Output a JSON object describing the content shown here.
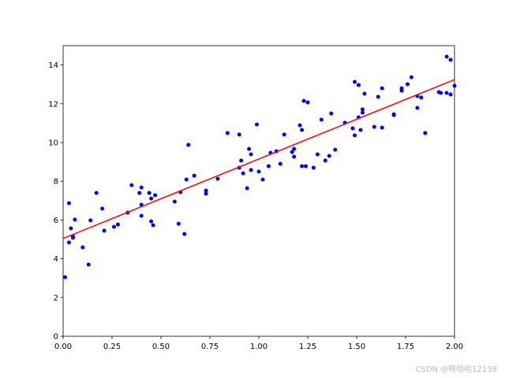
{
  "chart_data": {
    "type": "scatter",
    "xlim": [
      0,
      2
    ],
    "ylim": [
      0,
      15
    ],
    "xticks": [
      {
        "value": 0,
        "label": "0.00"
      },
      0.25,
      {
        "value": 0.5,
        "label": "0.50"
      },
      0.75,
      {
        "value": 1,
        "label": "1.00"
      },
      1.25,
      {
        "value": 1.5,
        "label": "1.50"
      },
      1.75,
      {
        "value": 2,
        "label": "2.00"
      }
    ],
    "yticks": [
      0,
      2,
      4,
      6,
      8,
      10,
      12,
      14
    ],
    "series": [
      {
        "type": "scatter",
        "color": "#0000ff",
        "x": [
          0.01,
          0.03,
          0.03,
          0.04,
          0.05,
          0.05,
          0.06,
          0.1,
          0.13,
          0.14,
          0.17,
          0.2,
          0.21,
          0.26,
          0.28,
          0.33,
          0.35,
          0.39,
          0.4,
          0.4,
          0.4,
          0.44,
          0.45,
          0.45,
          0.46,
          0.47,
          0.57,
          0.59,
          0.6,
          0.62,
          0.63,
          0.64,
          0.67,
          0.73,
          0.73,
          0.79,
          0.84,
          0.9,
          0.9,
          0.91,
          0.92,
          0.94,
          0.95,
          0.96,
          0.96,
          0.99,
          1.0,
          1.02,
          1.05,
          1.06,
          1.09,
          1.11,
          1.13,
          1.17,
          1.18,
          1.18,
          1.21,
          1.22,
          1.22,
          1.23,
          1.24,
          1.25,
          1.28,
          1.3,
          1.32,
          1.34,
          1.36,
          1.37,
          1.39,
          1.44,
          1.48,
          1.49,
          1.49,
          1.51,
          1.51,
          1.53,
          1.53,
          1.52,
          1.54,
          1.59,
          1.61,
          1.63,
          1.63,
          1.69,
          1.69,
          1.73,
          1.73,
          1.76,
          1.78,
          1.81,
          1.81,
          1.83,
          1.85,
          1.92,
          1.93,
          1.96,
          1.96,
          1.98,
          1.98,
          2.0
        ],
        "values": [
          3.05,
          6.87,
          4.84,
          5.57,
          5.16,
          5.08,
          6.02,
          4.59,
          3.7,
          5.98,
          7.4,
          6.59,
          5.45,
          5.65,
          5.77,
          6.38,
          7.8,
          7.4,
          6.79,
          6.22,
          7.68,
          7.4,
          7.11,
          5.93,
          5.73,
          7.28,
          6.95,
          5.81,
          7.44,
          5.28,
          8.09,
          9.88,
          8.29,
          7.52,
          7.36,
          8.13,
          10.49,
          8.7,
          10.41,
          9.07,
          8.41,
          7.64,
          9.67,
          8.58,
          9.39,
          10.93,
          8.5,
          8.09,
          8.78,
          9.47,
          9.55,
          8.9,
          10.41,
          9.51,
          9.67,
          9.27,
          10.89,
          10.65,
          8.78,
          12.15,
          8.78,
          12.07,
          8.7,
          9.39,
          11.18,
          9.07,
          9.31,
          11.5,
          9.63,
          11.02,
          10.73,
          13.13,
          10.37,
          12.97,
          11.3,
          11.71,
          11.54,
          10.65,
          12.52,
          10.81,
          12.36,
          12.8,
          10.77,
          11.42,
          11.46,
          12.68,
          12.8,
          13.01,
          13.37,
          11.79,
          12.4,
          12.32,
          10.49,
          12.6,
          12.56,
          12.56,
          14.43,
          14.27,
          12.48,
          12.93
        ]
      },
      {
        "type": "line",
        "color": "#ff0000",
        "x": [
          0,
          2
        ],
        "values": [
          5.05,
          13.25
        ]
      }
    ],
    "watermark": "CSDN @啊哈哈12138"
  }
}
